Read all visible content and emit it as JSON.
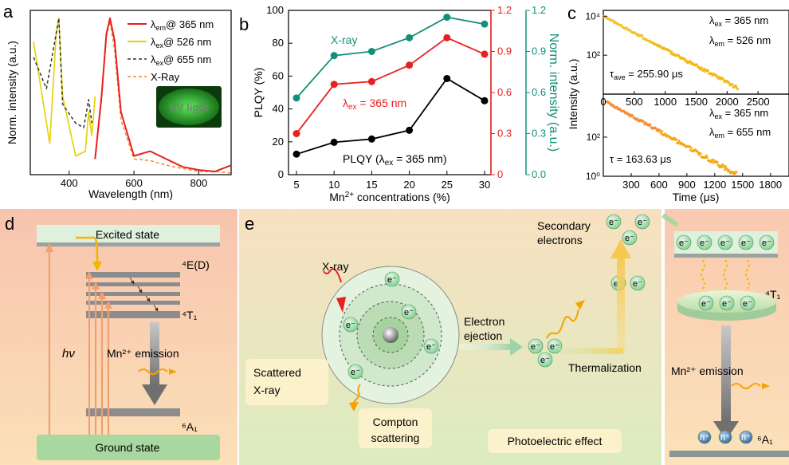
{
  "panel_labels": {
    "a": "a",
    "b": "b",
    "c": "c",
    "d": "d",
    "e": "e"
  },
  "panel_a": {
    "xlabel": "Wavelength (nm)",
    "ylabel": "Norm. intensity (a.u.)",
    "xticks": [
      "400",
      "600",
      "800"
    ],
    "legend": [
      {
        "label": "λem@ 365 nm",
        "color": "#e8201e"
      },
      {
        "label": "λex@ 526 nm",
        "color": "#e8d000"
      },
      {
        "label": "λex@ 655 nm",
        "color": "#333333"
      },
      {
        "label": "X-Ray",
        "color": "#f08a30"
      }
    ],
    "inset_text": "UV light"
  },
  "panel_b": {
    "xlabel": "Mn2+ concentrations (%)",
    "ylabel_left": "PLQY (%)",
    "ylabel_right": "Norm. intensity (a.u.)",
    "label_xray": "X-ray",
    "label_uv": "λex = 365 nm",
    "label_plqy": "PLQY (λex = 365 nm)",
    "xticks": [
      "5",
      "10",
      "15",
      "20",
      "25",
      "30"
    ],
    "yticks_left": [
      "0",
      "20",
      "40",
      "60",
      "80",
      "100"
    ],
    "yticks_right": [
      "0.0",
      "0.3",
      "0.6",
      "0.9",
      "1.2"
    ]
  },
  "panel_c": {
    "xlabel": "Time (μs)",
    "ylabel": "Intensity (a.u.)",
    "top": {
      "ex": "λex = 365 nm",
      "em": "λem = 526 nm",
      "tau": "τave = 255.90 μs",
      "xticks": [
        "0",
        "500",
        "1000",
        "1500",
        "2000",
        "2500"
      ],
      "yticks": [
        "10⁴",
        "10²"
      ]
    },
    "bottom": {
      "ex": "λex = 365 nm",
      "em": "λem = 655 nm",
      "tau": "τ = 163.63 μs",
      "xticks": [
        "300",
        "600",
        "900",
        "1200",
        "1500",
        "1800"
      ],
      "yticks": [
        "10²",
        "10⁰"
      ]
    }
  },
  "panel_d": {
    "excited": "Excited state",
    "ground": "Ground state",
    "level_4E": "⁴E(D)",
    "level_4T1": "⁴T₁",
    "level_6A1": "⁶A₁",
    "hv": "hν",
    "emission": "Mn²⁺ emission"
  },
  "panel_e": {
    "xray": "X-ray",
    "scattered": "Scattered X-ray",
    "compton": "Compton scattering",
    "electron_ejection": "Electron ejection",
    "thermalization": "Thermalization",
    "secondary": "Secondary electrons",
    "photoelectric": "Photoelectric effect",
    "e": "e⁻",
    "h": "h⁺",
    "level_4T1": "⁴T₁",
    "level_6A1": "⁶A₁",
    "emission": "Mn²⁺ emission"
  },
  "chart_data": [
    {
      "type": "line",
      "xlabel": "Wavelength (nm)",
      "ylabel": "Norm. intensity (a.u.)",
      "xlim": [
        280,
        900
      ],
      "ylim": [
        0,
        1.05
      ],
      "series": [
        {
          "name": "λem@ 365 nm",
          "x": [
            290,
            340,
            360,
            368,
            380,
            420,
            450,
            460,
            470,
            480
          ],
          "y": [
            0.85,
            0.2,
            0.9,
            1.0,
            0.5,
            0.12,
            0.15,
            0.4,
            0.25,
            0.5
          ]
        },
        {
          "name": "λex@ 526 nm",
          "x": [
            480,
            500,
            515,
            526,
            540,
            560,
            600,
            650,
            700,
            750,
            800,
            850,
            900
          ],
          "y": [
            0.1,
            0.5,
            0.9,
            1.0,
            0.85,
            0.4,
            0.12,
            0.15,
            0.1,
            0.05,
            0.03,
            0.02,
            0.02
          ]
        },
        {
          "name": "λex@ 655 nm",
          "x": [
            290,
            330,
            368,
            380,
            420,
            445,
            460,
            470
          ],
          "y": [
            0.75,
            0.55,
            1.0,
            0.45,
            0.33,
            0.3,
            0.48,
            0.33
          ]
        },
        {
          "name": "X-Ray",
          "x": [
            480,
            500,
            515,
            526,
            540,
            560,
            600,
            650,
            700,
            750,
            800,
            850,
            900
          ],
          "y": [
            0.1,
            0.48,
            0.88,
            0.98,
            0.8,
            0.35,
            0.1,
            0.09,
            0.06,
            0.04,
            0.02,
            0.02,
            0.01
          ]
        }
      ]
    },
    {
      "type": "line",
      "xlabel": "Mn2+ concentrations (%)",
      "ylabel": "PLQY (%)",
      "categories": [
        5,
        10,
        15,
        20,
        25,
        30
      ],
      "ylim": [
        0,
        100
      ],
      "y2lim": [
        0,
        1.2
      ],
      "series": [
        {
          "name": "PLQY (λex = 365 nm)",
          "axis": "left",
          "values": [
            12.5,
            19.7,
            21.7,
            27,
            58.5,
            45
          ]
        },
        {
          "name": "λex = 365 nm",
          "axis": "right",
          "values": [
            0.3,
            0.66,
            0.68,
            0.8,
            1.0,
            0.88
          ]
        },
        {
          "name": "X-ray",
          "axis": "right",
          "values": [
            0.56,
            0.87,
            0.9,
            1.0,
            1.15,
            1.1
          ]
        }
      ]
    },
    {
      "type": "scatter",
      "xlabel": "Time (μs)",
      "ylabel": "Intensity (a.u.)",
      "xlim": [
        0,
        3000
      ],
      "series": [
        {
          "name": "λem = 526 nm",
          "tau": 255.9,
          "y0": 10000
        }
      ]
    },
    {
      "type": "scatter",
      "xlabel": "Time (μs)",
      "ylabel": "Intensity (a.u.)",
      "xlim": [
        0,
        2000
      ],
      "series": [
        {
          "name": "λem = 655 nm",
          "tau": 163.63,
          "y0": 10000
        }
      ]
    }
  ]
}
